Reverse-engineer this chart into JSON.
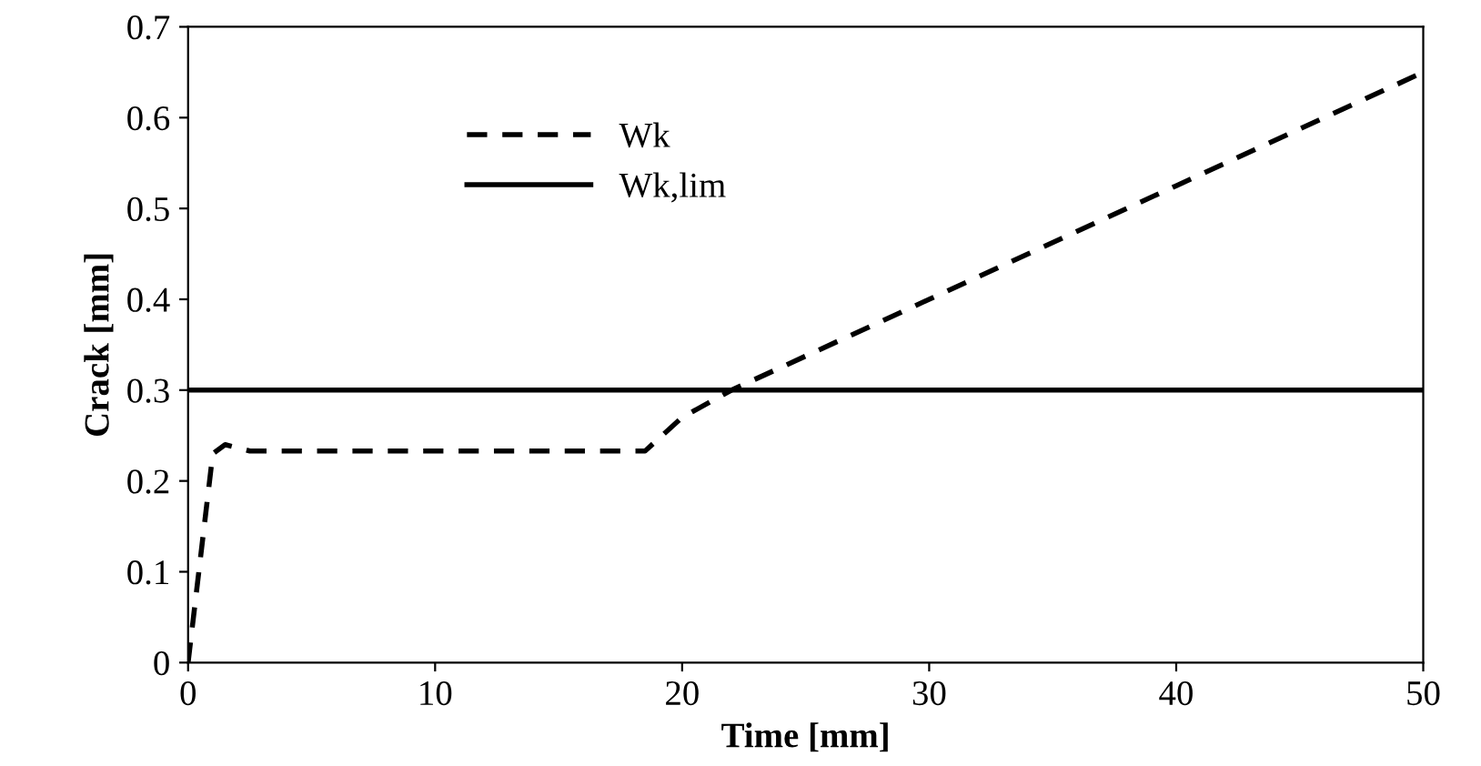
{
  "chart_data": {
    "type": "line",
    "xlabel": "Time [mm]",
    "ylabel": "Crack [mm]",
    "xlim": [
      0,
      50
    ],
    "ylim": [
      0,
      0.7
    ],
    "xticks": [
      0,
      10,
      20,
      30,
      40,
      50
    ],
    "yticks": [
      0,
      0.1,
      0.2,
      0.3,
      0.4,
      0.5,
      0.6,
      0.7
    ],
    "grid": false,
    "legend": "top left",
    "marker": "none",
    "series": [
      {
        "name": "Wk",
        "color": "#000000",
        "line_style": "dashed",
        "x": [
          0,
          1,
          1.5,
          2.5,
          10,
          18.5,
          20,
          22,
          30,
          40,
          50
        ],
        "values": [
          0,
          0.23,
          0.24,
          0.233,
          0.233,
          0.233,
          0.27,
          0.3,
          0.4,
          0.525,
          0.65
        ]
      },
      {
        "name": "Wk,lim",
        "color": "#000000",
        "line_style": "solid",
        "x": [
          0,
          50
        ],
        "values": [
          0.3,
          0.3
        ]
      }
    ]
  }
}
